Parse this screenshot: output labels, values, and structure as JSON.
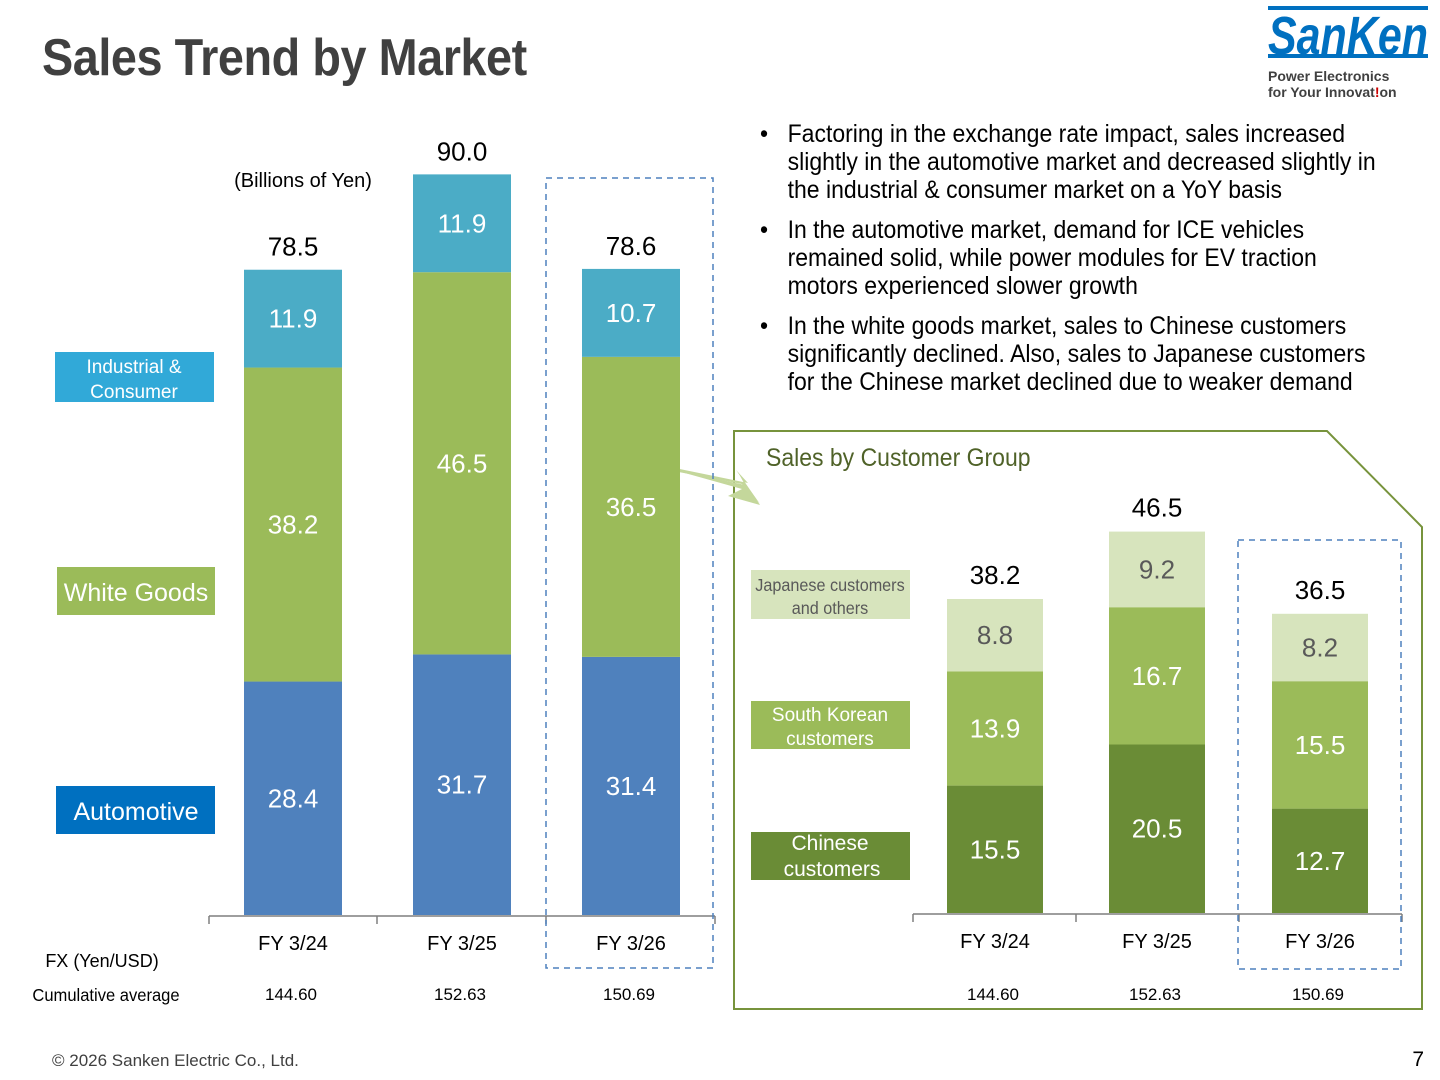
{
  "slide": {
    "title": "Sales Trend by Market",
    "page_number": "7",
    "copyright": "© 2026  Sanken Electric Co., Ltd."
  },
  "logo": {
    "name": "SanKen",
    "tagline_line1": "Power Electronics",
    "tagline_line2_prefix": "for Your Innovat",
    "tagline_line2_accent": "!",
    "tagline_line2_suffix": "on"
  },
  "bullets": [
    "Factoring in the exchange rate impact, sales increased slightly in the automotive market and decreased slightly in the industrial & consumer market on a YoY basis",
    "In the automotive market, demand for ICE vehicles remained solid, while power modules for EV traction motors experienced slower growth",
    "In the white goods market, sales to Chinese customers significantly declined.  Also, sales to Japanese customers for the Chinese market declined due to weaker demand"
  ],
  "colors": {
    "automotive": "#4f81bd",
    "white_goods": "#9bbb59",
    "industrial": "#4bacc6",
    "chinese": "#6a8c36",
    "south_korean": "#9bbb59",
    "japanese": "#d7e4bd",
    "label_automotive": "#0070c0",
    "label_industrial": "#31a9d8",
    "callout_border": "#77933c",
    "highlight_dash": "#4f81bd",
    "title": "#404040"
  },
  "chart_data": [
    {
      "type": "bar",
      "stacked": true,
      "unit_note": "(Billions of Yen)",
      "categories": [
        "FY 3/24",
        "FY 3/25",
        "FY 3/26"
      ],
      "series": [
        {
          "name": "Automotive",
          "values": [
            28.4,
            31.7,
            31.4
          ]
        },
        {
          "name": "White Goods",
          "values": [
            38.2,
            46.5,
            36.5
          ]
        },
        {
          "name": "Industrial & Consumer",
          "values": [
            11.9,
            11.9,
            10.7
          ]
        }
      ],
      "totals": [
        "78.5",
        "90.0",
        "78.6"
      ],
      "fx_label": "FX (Yen/USD)",
      "fx_sublabel": "Cumulative average",
      "fx_values": [
        "144.60",
        "152.63",
        "150.69"
      ],
      "highlight_category": "FY 3/26"
    },
    {
      "type": "bar",
      "stacked": true,
      "title": "Sales by Customer Group",
      "categories": [
        "FY 3/24",
        "FY 3/25",
        "FY 3/26"
      ],
      "series": [
        {
          "name": "Chinese customers",
          "values": [
            15.5,
            20.5,
            12.7
          ]
        },
        {
          "name": "South Korean customers",
          "values": [
            13.9,
            16.7,
            15.5
          ]
        },
        {
          "name": "Japanese customers and others",
          "values": [
            8.8,
            9.2,
            8.2
          ]
        }
      ],
      "totals": [
        "38.2",
        "46.5",
        "36.5"
      ],
      "fx_values": [
        "144.60",
        "152.63",
        "150.69"
      ],
      "highlight_category": "FY 3/26"
    }
  ]
}
